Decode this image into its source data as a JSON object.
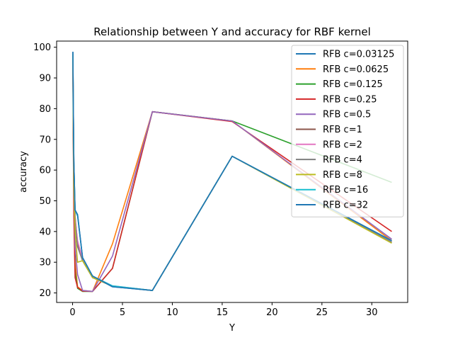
{
  "chart_data": {
    "type": "line",
    "title": "Relationship between Y and accuracy for RBF kernel",
    "xlabel": "Y",
    "ylabel": "accuracy",
    "xlim": [
      -1.6,
      33.6
    ],
    "ylim": [
      16.9,
      102.0
    ],
    "xticks": [
      0,
      5,
      10,
      15,
      20,
      25,
      30
    ],
    "yticks": [
      20,
      30,
      40,
      50,
      60,
      70,
      80,
      90,
      100
    ],
    "grid": false,
    "legend_position": "top-right",
    "x": [
      0.03125,
      0.0625,
      0.125,
      0.25,
      0.5,
      1,
      2,
      4,
      8,
      16,
      32
    ],
    "series": [
      {
        "name": "RFB c=0.03125",
        "color": "#1f77b4",
        "values": [
          98.5,
          85.0,
          63.0,
          47.0,
          45.5,
          31.5,
          25.5,
          22.0,
          20.8,
          64.5,
          37.0
        ]
      },
      {
        "name": "RFB c=0.0625",
        "color": "#ff7f0e",
        "values": [
          98.0,
          80.0,
          55.0,
          30.0,
          22.0,
          20.8,
          20.5,
          36.0,
          79.0,
          76.0,
          37.0
        ]
      },
      {
        "name": "RFB c=0.125",
        "color": "#2ca02c",
        "values": [
          97.5,
          75.0,
          50.0,
          27.0,
          21.5,
          20.5,
          20.5,
          28.0,
          79.0,
          76.0,
          56.0
        ]
      },
      {
        "name": "RFB c=0.25",
        "color": "#d62728",
        "values": [
          97.0,
          72.0,
          45.0,
          25.0,
          21.8,
          20.6,
          20.5,
          28.0,
          79.0,
          75.8,
          40.0
        ]
      },
      {
        "name": "RFB c=0.5",
        "color": "#9467bd",
        "values": [
          97.0,
          80.0,
          55.0,
          35.0,
          26.0,
          20.8,
          20.5,
          32.0,
          79.0,
          76.0,
          37.5
        ]
      },
      {
        "name": "RFB c=1",
        "color": "#8c564b",
        "values": [
          97.5,
          84.0,
          62.0,
          45.0,
          36.0,
          30.5,
          25.0,
          22.2,
          20.8,
          64.5,
          36.5
        ]
      },
      {
        "name": "RFB c=2",
        "color": "#e377c2",
        "values": [
          98.0,
          82.0,
          60.0,
          44.0,
          37.0,
          31.0,
          25.5,
          22.3,
          20.8,
          64.5,
          36.5
        ]
      },
      {
        "name": "RFB c=4",
        "color": "#7f7f7f",
        "values": [
          98.0,
          80.0,
          58.0,
          43.0,
          35.0,
          30.5,
          25.0,
          22.2,
          20.8,
          64.5,
          36.5
        ]
      },
      {
        "name": "RFB c=8",
        "color": "#bcbd22",
        "values": [
          97.5,
          78.0,
          55.0,
          40.0,
          30.0,
          30.5,
          25.0,
          22.2,
          20.8,
          64.5,
          36.2
        ]
      },
      {
        "name": "RFB c=16",
        "color": "#17becf",
        "values": [
          98.0,
          84.0,
          63.0,
          47.0,
          45.0,
          31.5,
          25.5,
          22.3,
          20.8,
          64.5,
          37.0
        ]
      },
      {
        "name": "RFB c=32",
        "color": "#1f77b4",
        "values": [
          98.5,
          85.0,
          63.0,
          47.0,
          45.5,
          31.5,
          25.5,
          22.0,
          20.8,
          64.5,
          37.0
        ]
      }
    ]
  }
}
